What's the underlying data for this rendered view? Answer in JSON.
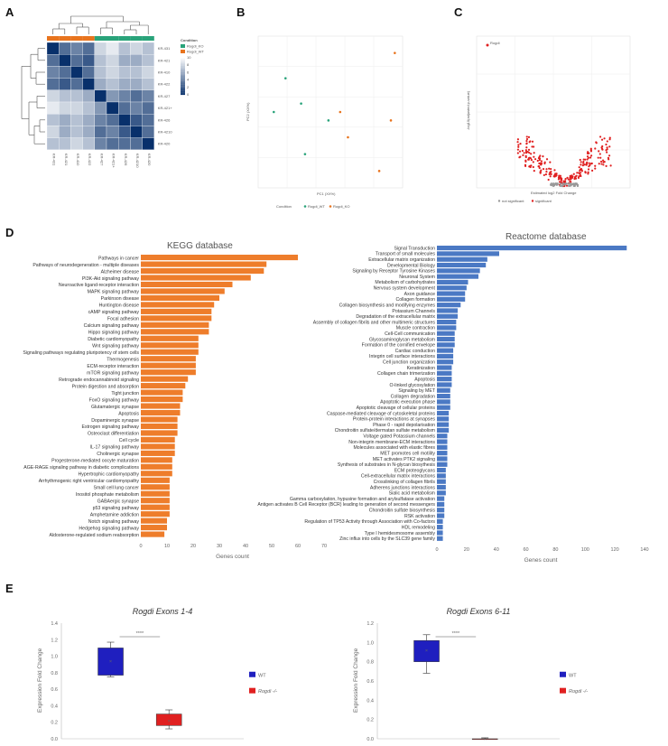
{
  "panels": {
    "a": "A",
    "b": "B",
    "c": "C",
    "d": "D",
    "e": "E"
  },
  "colors": {
    "wt": "#29a37a",
    "ko": "#e8741e",
    "kegg_bar": "#ee7d2b",
    "reactome_bar": "#4b79c4",
    "box_wt": "#1f1fbf",
    "box_ko": "#e02020",
    "heat_low": "#ffffff",
    "heat_high": "#08306b"
  },
  "chart_data": [
    {
      "type": "heatmap",
      "panel": "A",
      "legend_title": "Condition",
      "legend_entries": [
        "Rogdi_KO",
        "Rogdi_WT"
      ],
      "row_labels": [
        "KR-431",
        "KR-421",
        "KR-410",
        "KR-422",
        "KR-427",
        "KR-421+",
        "KR-426",
        "KR-4210",
        "KR-420"
      ],
      "col_labels": [
        "KR-431",
        "KR-421",
        "KR-410",
        "KR-422",
        "KR-427",
        "KR-421+",
        "KR-426",
        "KR-4210",
        "KR-420"
      ],
      "col_conditions": [
        "KO",
        "KO",
        "KO",
        "KO",
        "WT",
        "WT",
        "WT",
        "WT",
        "WT"
      ],
      "scale_ticks": [
        "10",
        "8",
        "6",
        "4",
        "2",
        "0"
      ],
      "values": [
        [
          0,
          3,
          4,
          3,
          8,
          9,
          7,
          8,
          7
        ],
        [
          3,
          0,
          3,
          2,
          7,
          8,
          6,
          6,
          7
        ],
        [
          4,
          3,
          0,
          3,
          7,
          8,
          7,
          7,
          8
        ],
        [
          3,
          2,
          3,
          0,
          6,
          7,
          6,
          6,
          7
        ],
        [
          8,
          7,
          7,
          6,
          0,
          5,
          4,
          3,
          4
        ],
        [
          9,
          8,
          8,
          7,
          5,
          0,
          3,
          4,
          3
        ],
        [
          7,
          6,
          7,
          6,
          4,
          3,
          0,
          2,
          3
        ],
        [
          8,
          6,
          7,
          6,
          3,
          4,
          2,
          0,
          3
        ],
        [
          7,
          7,
          8,
          7,
          4,
          3,
          3,
          3,
          0
        ]
      ]
    },
    {
      "type": "scatter",
      "panel": "B",
      "xlabel": "PC1 (XX%)",
      "ylabel": "PC2 (XX%)",
      "legend": "Condition",
      "series": [
        {
          "name": "Rogdi_KO",
          "points": [
            [
              20,
              9
            ],
            [
              6,
              2
            ],
            [
              8,
              -1
            ],
            [
              19,
              1
            ],
            [
              16,
              -5
            ]
          ]
        },
        {
          "name": "Rogdi_WT",
          "points": [
            [
              -8,
              6
            ],
            [
              -4,
              3
            ],
            [
              -11,
              2
            ],
            [
              3,
              1
            ],
            [
              -3,
              -3
            ]
          ]
        }
      ],
      "xlim": [
        -15,
        22
      ],
      "ylim": [
        -7,
        11
      ]
    },
    {
      "type": "scatter",
      "panel": "C",
      "xlabel": "Estimated log2 Fold Change",
      "ylabel": "-log10(adjusted p-value)",
      "legend": [
        "not significant",
        "significant"
      ],
      "labelled_points": [
        "Rogdi"
      ],
      "xlim": [
        -8,
        6
      ],
      "ylim": [
        0,
        60
      ]
    },
    {
      "type": "bar",
      "panel": "D-left",
      "title": "KEGG database",
      "xlabel": "Genes count",
      "xlim": [
        0,
        70
      ],
      "xticks": [
        "0",
        "10",
        "20",
        "30",
        "40",
        "50",
        "60",
        "70"
      ],
      "categories": [
        "Pathways in cancer",
        "Pathways of neurodegeneration - multiple diseases",
        "Alzheimer disease",
        "PI3K-Akt signaling pathway",
        "Neuroactive ligand-receptor interaction",
        "MAPK signaling pathway",
        "Parkinson disease",
        "Huntington disease",
        "cAMP signaling pathway",
        "Focal adhesion",
        "Calcium signaling pathway",
        "Hippo signaling pathway",
        "Diabetic cardiomyopathy",
        "Wnt signaling pathway",
        "Signaling pathways regulating pluripotency of stem cells",
        "Thermogenesis",
        "ECM-receptor interaction",
        "mTOR signaling pathway",
        "Retrograde endocannabinoid signaling",
        "Protein digestion and absorption",
        "Tight junction",
        "FoxO signaling pathway",
        "Glutamatergic synapse",
        "Apoptosis",
        "Dopaminergic synapse",
        "Estrogen signaling pathway",
        "Osteoclast differentiation",
        "Cell cycle",
        "IL-17 signaling pathway",
        "Cholinergic synapse",
        "Progesterone-mediated oocyte maturation",
        "AGE-RAGE signaling pathway in diabetic complications",
        "Hypertrophic cardiomyopathy",
        "Arrhythmogenic right ventricular cardiomyopathy",
        "Small cell lung cancer",
        "Inositol phosphate metabolism",
        "GABAergic synapse",
        "p53 signaling pathway",
        "Amphetamine addiction",
        "Notch signaling pathway",
        "Hedgehog signaling pathway",
        "Aldosterone-regulated sodium reabsorption"
      ],
      "values": [
        60,
        48,
        47,
        42,
        35,
        32,
        30,
        28,
        27,
        27,
        26,
        26,
        22,
        22,
        22,
        21,
        21,
        21,
        18,
        17,
        16,
        16,
        15,
        15,
        14,
        14,
        14,
        13,
        13,
        13,
        12,
        12,
        12,
        11,
        11,
        11,
        11,
        11,
        11,
        10,
        10,
        9
      ]
    },
    {
      "type": "bar",
      "panel": "D-right",
      "title": "Reactome database",
      "xlabel": "Genes count",
      "xlim": [
        0,
        140
      ],
      "xticks": [
        "0",
        "20",
        "40",
        "60",
        "80",
        "100",
        "120",
        "140"
      ],
      "categories": [
        "Signal Transduction",
        "Transport of small molecules",
        "Extracellular matrix organization",
        "Developmental Biology",
        "Signaling by Receptor Tyrosine Kinases",
        "Neuronal System",
        "Metabolism of carbohydrates",
        "Nervous system development",
        "Axon guidance",
        "Collagen formation",
        "Collagen biosynthesis and modifying enzymes",
        "Potassium Channels",
        "Degradation of the extracellular matrix",
        "Assembly of collagen fibrils and other multimeric structures",
        "Muscle contraction",
        "Cell-Cell communication",
        "Glycosaminoglycan metabolism",
        "Formation of the cornified envelope",
        "Cardiac conduction",
        "Integrin cell surface interactions",
        "Cell junction organization",
        "Keratinization",
        "Collagen chain trimerization",
        "Apoptosis",
        "O-linked glycosylation",
        "Signaling by MET",
        "Collagen degradation",
        "Apoptotic execution phase",
        "Apoptotic cleavage of cellular proteins",
        "Caspase-mediated cleavage of cytoskeletal proteins",
        "Protein-protein interactions at synapses",
        "Phase 0 - rapid depolarisation",
        "Chondroitin sulfate/dermatan sulfate metabolism",
        "Voltage gated Potassium channels",
        "Non-integrin membrane-ECM interactions",
        "Molecules associated with elastic fibres",
        "MET promotes cell motility",
        "MET activates PTK2 signaling",
        "Synthesis of substrates in N-glycan biosythesis",
        "ECM proteoglycans",
        "Cell-extracellular matrix interactions",
        "Crosslinking of collagen fibrils",
        "Adherens junctions interactions",
        "Sialic acid metabolism",
        "Gamma carboxylation, hypusine formation and arylsulfatase activation",
        "Antigen activates B Cell Receptor (BCR) leading to generation of second messengers",
        "Chondroitin sulfate biosynthesis",
        "RSK activation",
        "Regulation of TP53 Activity through Association with Co-factors",
        "HDL remodeling",
        "Type I hemidesmosome assembly",
        "Zinc influx into cells by the SLC39 gene family"
      ],
      "values": [
        128,
        42,
        34,
        33,
        29,
        28,
        21,
        20,
        19,
        19,
        16,
        14,
        14,
        13,
        13,
        12,
        12,
        12,
        11,
        11,
        11,
        10,
        10,
        10,
        10,
        9,
        9,
        9,
        9,
        8,
        8,
        8,
        8,
        7,
        7,
        7,
        7,
        7,
        7,
        6,
        6,
        6,
        6,
        6,
        5,
        5,
        5,
        5,
        4,
        4,
        4,
        4
      ]
    },
    {
      "type": "box",
      "panel": "E-left",
      "title": "Rogdi Exons 1-4",
      "ylabel": "Expression Fold Change",
      "ylim": [
        0,
        1.4
      ],
      "yticks": [
        "0.0",
        "0.2",
        "0.4",
        "0.6",
        "0.8",
        "1.0",
        "1.2",
        "1.4"
      ],
      "significance": "****",
      "legend": [
        "WT",
        "Rogdi -/-"
      ],
      "series": [
        {
          "name": "WT",
          "min": 0.75,
          "q1": 0.77,
          "median": 0.95,
          "q3": 1.1,
          "max": 1.17,
          "mean": 0.94
        },
        {
          "name": "Rogdi -/-",
          "min": 0.12,
          "q1": 0.16,
          "median": 0.22,
          "q3": 0.3,
          "max": 0.35,
          "mean": 0.22
        }
      ]
    },
    {
      "type": "box",
      "panel": "E-right",
      "title": "Rogdi Exons 6-11",
      "ylabel": "Expression Fold Change",
      "ylim": [
        0,
        1.2
      ],
      "yticks": [
        "0.0",
        "0.2",
        "0.4",
        "0.6",
        "0.8",
        "1.0",
        "1.2"
      ],
      "significance": "****",
      "legend": [
        "WT",
        "Rogdi -/-"
      ],
      "series": [
        {
          "name": "WT",
          "min": 0.68,
          "q1": 0.8,
          "median": 0.95,
          "q3": 1.02,
          "max": 1.08,
          "mean": 0.92
        },
        {
          "name": "Rogdi -/-",
          "min": 0.0,
          "q1": 0.0,
          "median": 0.0,
          "q3": 0.0,
          "max": 0.01,
          "mean": 0.0
        }
      ]
    }
  ]
}
